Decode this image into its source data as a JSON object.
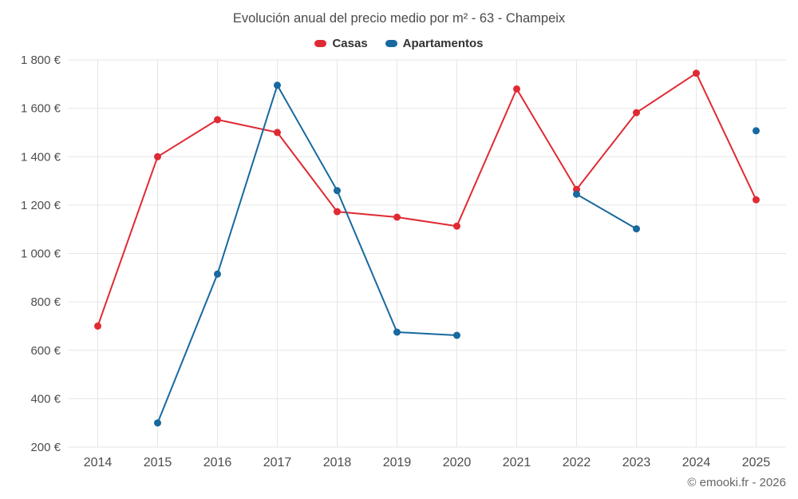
{
  "title": "Evolución anual del precio medio por m² - 63 - Champeix",
  "legend": {
    "items": [
      {
        "label": "Casas",
        "color": "#e02a33"
      },
      {
        "label": "Apartamentos",
        "color": "#17699e"
      }
    ]
  },
  "footer": "© emooki.fr - 2026",
  "colors": {
    "grid": "#e6e6e6",
    "axis_text": "#4d4d4d",
    "title_text": "#4a4a4a",
    "footer_text": "#666666"
  },
  "chart_data": {
    "type": "line",
    "title": "Evolución anual del precio medio por m² - 63 - Champeix",
    "x": [
      "2014",
      "2015",
      "2016",
      "2017",
      "2018",
      "2019",
      "2020",
      "2021",
      "2022",
      "2023",
      "2024",
      "2025"
    ],
    "series": [
      {
        "name": "Casas",
        "color": "#e02a33",
        "values": [
          700,
          1400,
          1553,
          1500,
          1173,
          1150,
          1113,
          1680,
          1265,
          1582,
          1745,
          1222
        ]
      },
      {
        "name": "Apartamentos",
        "color": "#17699e",
        "values": [
          null,
          300,
          915,
          1695,
          1260,
          675,
          662,
          null,
          1245,
          1102,
          null,
          1507
        ]
      }
    ],
    "xlabel": "",
    "ylabel": "",
    "ylim": [
      200,
      1800
    ],
    "yticks": [
      {
        "value": 200,
        "label": "200 €"
      },
      {
        "value": 400,
        "label": "400 €"
      },
      {
        "value": 600,
        "label": "600 €"
      },
      {
        "value": 800,
        "label": "800 €"
      },
      {
        "value": 1000,
        "label": "1 000 €"
      },
      {
        "value": 1200,
        "label": "1 200 €"
      },
      {
        "value": 1400,
        "label": "1 400 €"
      },
      {
        "value": 1600,
        "label": "1 600 €"
      },
      {
        "value": 1800,
        "label": "1 800 €"
      }
    ],
    "grid": true,
    "legend_position": "top"
  }
}
